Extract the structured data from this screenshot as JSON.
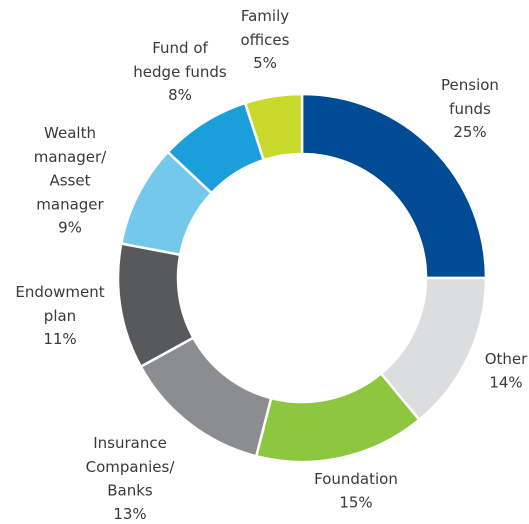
{
  "chart_data": {
    "type": "donut",
    "categories": [
      "Pension\nfunds",
      "Other",
      "Foundation",
      "Insurance\nCompanies/\nBanks",
      "Endowment\nplan",
      "Wealth\nmanager/\nAsset\nmanager",
      "Fund of\nhedge funds",
      "Family\noffices"
    ],
    "values": [
      25,
      14,
      15,
      13,
      11,
      9,
      8,
      5
    ],
    "value_labels": [
      "25%",
      "14%",
      "15%",
      "13%",
      "11%",
      "9%",
      "8%",
      "5%"
    ],
    "colors": [
      "#004b93",
      "#dcdddf",
      "#8dc63f",
      "#8c8d8f",
      "#58595b",
      "#74c8ea",
      "#1a9fdb",
      "#c8d92b"
    ]
  }
}
